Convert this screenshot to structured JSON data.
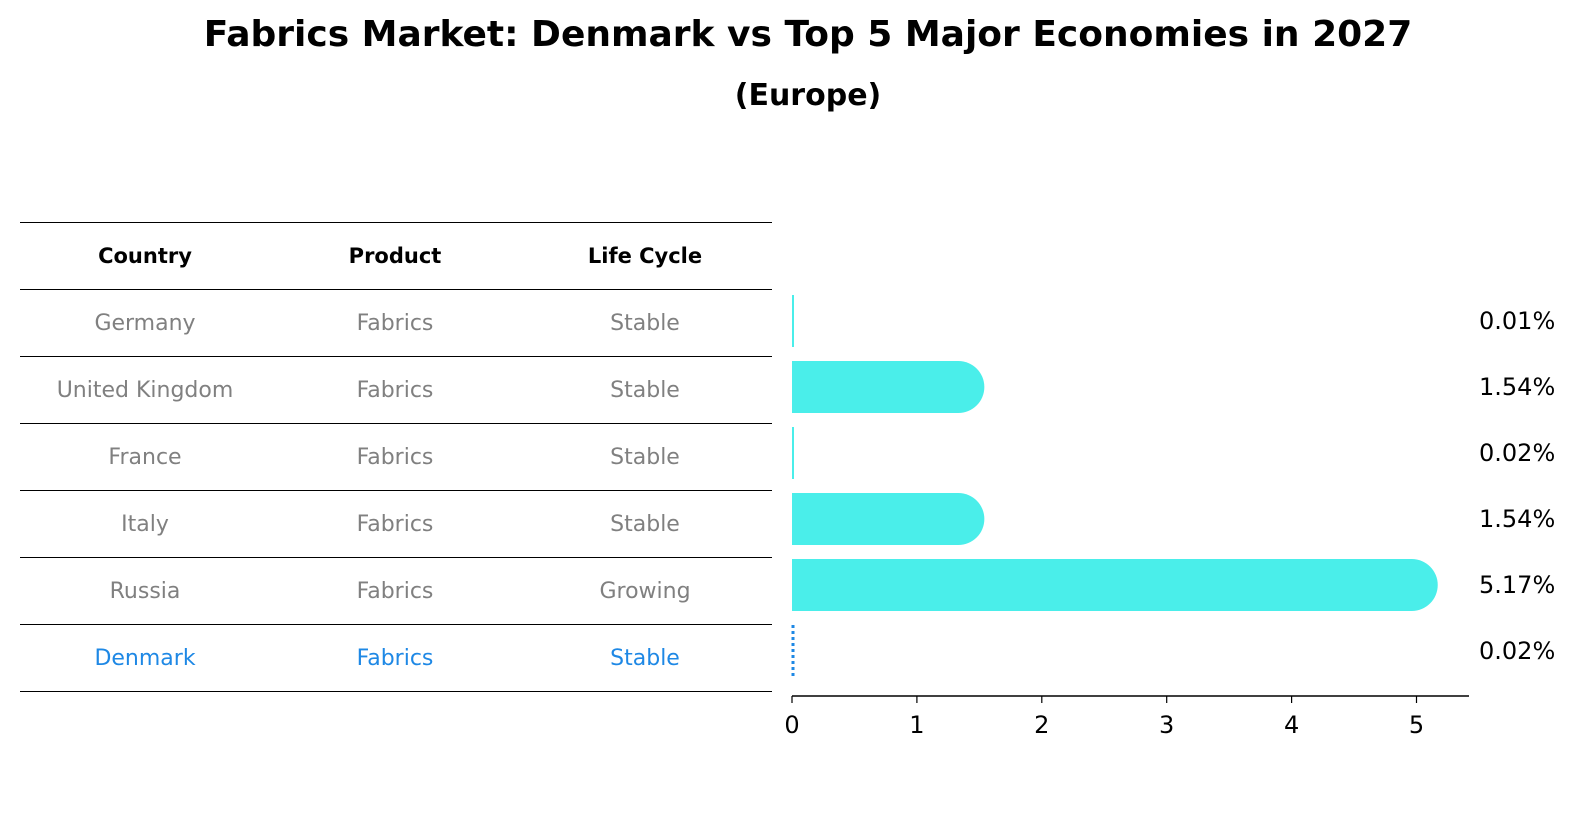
{
  "title": "Fabrics Market: Denmark vs Top 5 Major Economies in 2027",
  "subtitle": "(Europe)",
  "table": {
    "headers": [
      "Country",
      "Product",
      "Life Cycle"
    ],
    "rows": [
      {
        "country": "Germany",
        "product": "Fabrics",
        "life_cycle": "Stable",
        "highlight": false
      },
      {
        "country": "United Kingdom",
        "product": "Fabrics",
        "life_cycle": "Stable",
        "highlight": false
      },
      {
        "country": "France",
        "product": "Fabrics",
        "life_cycle": "Stable",
        "highlight": false
      },
      {
        "country": "Italy",
        "product": "Fabrics",
        "life_cycle": "Stable",
        "highlight": false
      },
      {
        "country": "Russia",
        "product": "Fabrics",
        "life_cycle": "Growing",
        "highlight": false
      },
      {
        "country": "Denmark",
        "product": "Fabrics",
        "life_cycle": "Stable",
        "highlight": true
      }
    ]
  },
  "chart_data": {
    "type": "bar",
    "orientation": "horizontal",
    "categories": [
      "Germany",
      "United Kingdom",
      "France",
      "Italy",
      "Russia",
      "Denmark"
    ],
    "values": [
      0.01,
      1.54,
      0.02,
      1.54,
      5.17,
      0.02
    ],
    "value_labels": [
      "0.01%",
      "1.54%",
      "0.02%",
      "1.54%",
      "5.17%",
      "0.02%"
    ],
    "xticks": [
      "0",
      "1",
      "2",
      "3",
      "4",
      "5"
    ],
    "xlim": [
      0,
      5.4
    ],
    "grid": false,
    "colors": {
      "bar": "#4aeeea",
      "highlight_bar": "#1e88e5",
      "highlight_text": "#1e88e5",
      "row_text": "#808080"
    }
  }
}
